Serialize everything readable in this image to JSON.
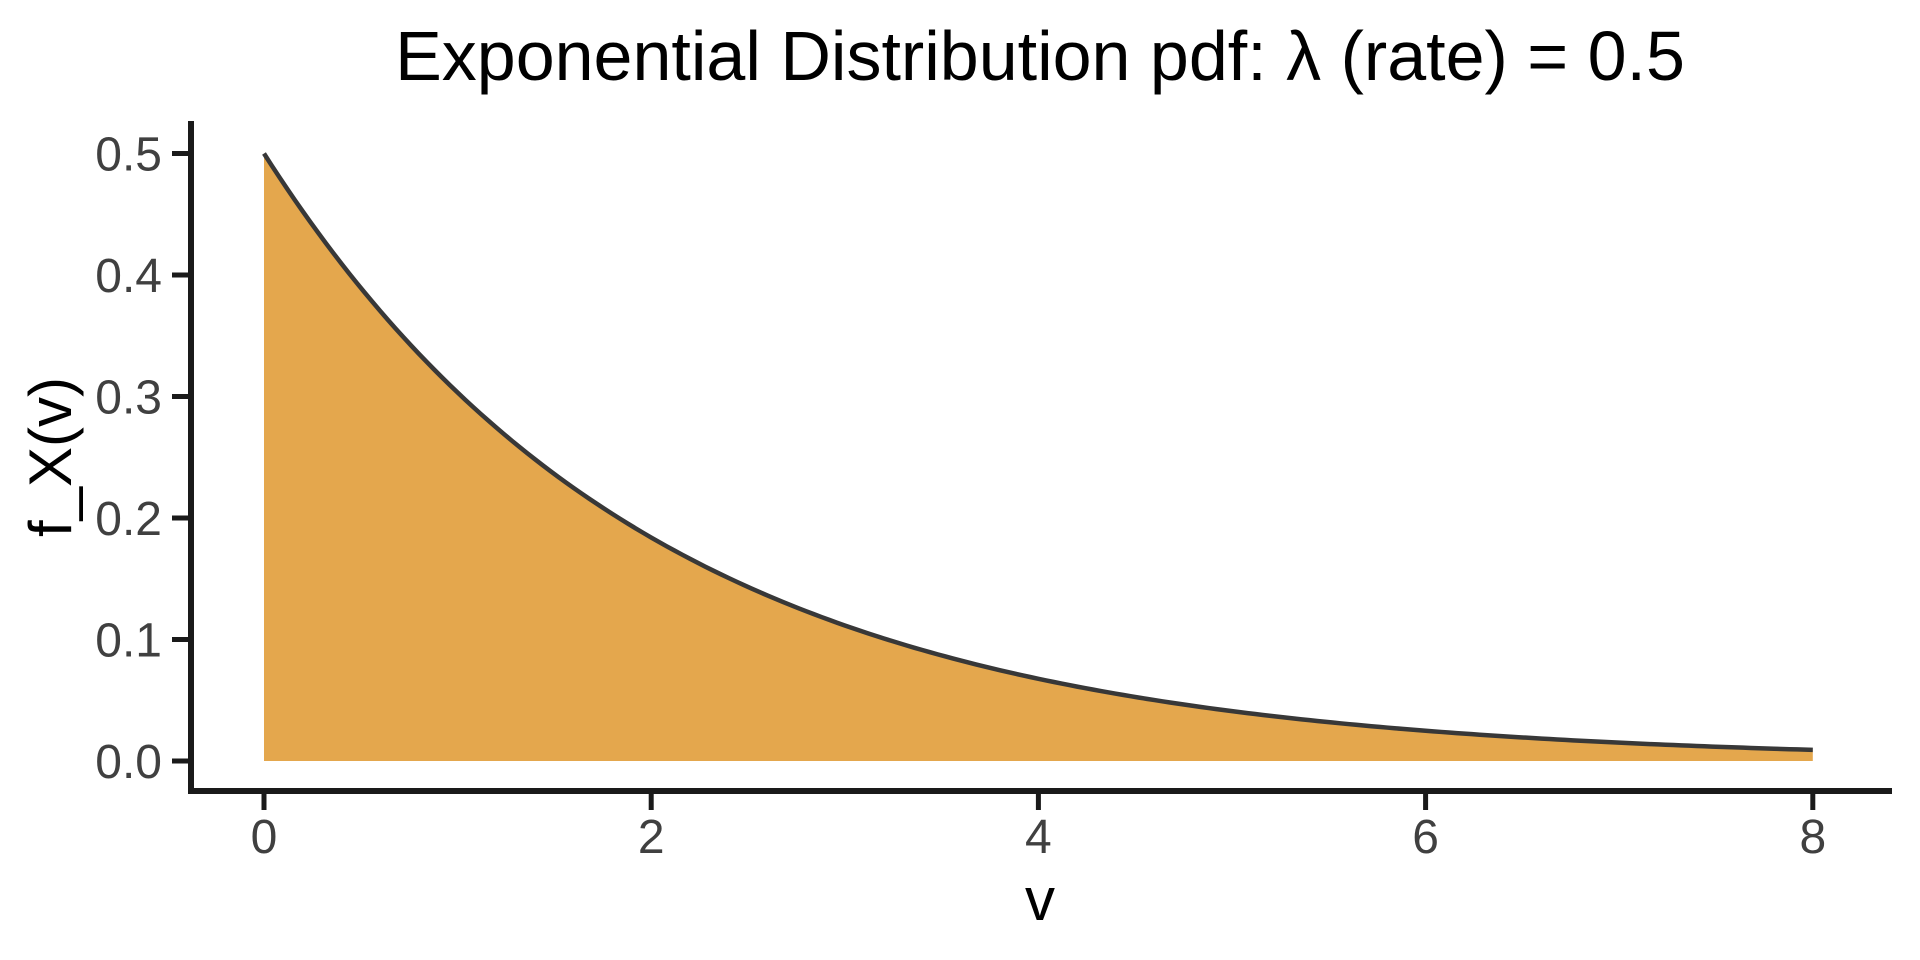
{
  "chart_data": {
    "type": "area",
    "title": "Exponential Distribution pdf: λ (rate) = 0.5",
    "xlabel": "v",
    "ylabel": "f_X(v)",
    "distribution": "exponential",
    "lambda": 0.5,
    "x_range": [
      0,
      8
    ],
    "ylim": [
      0,
      0.5
    ],
    "x_ticks": [
      0,
      2,
      4,
      6,
      8
    ],
    "x_tick_labels": [
      "0",
      "2",
      "4",
      "6",
      "8"
    ],
    "y_ticks": [
      0.0,
      0.1,
      0.2,
      0.3,
      0.4,
      0.5
    ],
    "y_tick_labels": [
      "0.0",
      "0.1",
      "0.2",
      "0.3",
      "0.4",
      "0.5"
    ],
    "curve_points": {
      "x": [
        0,
        1,
        2,
        3,
        4,
        5,
        6,
        7,
        8
      ],
      "y": [
        0.5,
        0.3033,
        0.1839,
        0.1116,
        0.0677,
        0.041,
        0.0249,
        0.0151,
        0.0092
      ]
    },
    "legend": "none",
    "grid": "off",
    "colors": {
      "fill": "#E4A74D",
      "curve_stroke": "#383838",
      "axis": "#1A1A1A",
      "tick_label": "#404040",
      "title": "#000000",
      "background": "#FFFFFF"
    }
  }
}
